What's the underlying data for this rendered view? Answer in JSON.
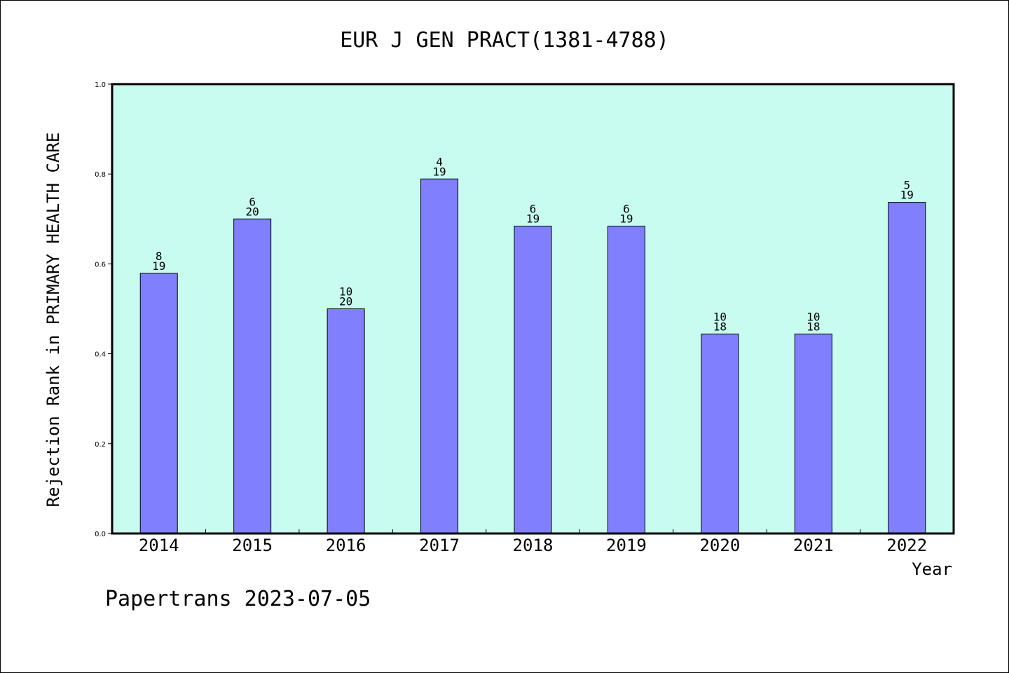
{
  "chart_data": {
    "type": "bar",
    "title": "EUR J GEN PRACT(1381-4788)",
    "xlabel": "Year",
    "ylabel": "Rejection Rank in PRIMARY HEALTH CARE",
    "ylim": [
      0,
      1.0
    ],
    "yticks": [
      "0.0",
      "0.2",
      "0.4",
      "0.6",
      "0.8",
      "1.0"
    ],
    "categories": [
      "2014",
      "2015",
      "2016",
      "2017",
      "2018",
      "2019",
      "2020",
      "2021",
      "2022"
    ],
    "values": [
      0.579,
      0.7,
      0.5,
      0.789,
      0.684,
      0.684,
      0.444,
      0.444,
      0.737
    ],
    "labels_top": [
      "8",
      "6",
      "10",
      "4",
      "6",
      "6",
      "10",
      "10",
      "5"
    ],
    "labels_bottom": [
      "19",
      "20",
      "20",
      "19",
      "19",
      "19",
      "18",
      "18",
      "19"
    ],
    "grid": false,
    "colors": {
      "plot_bg": "#c8fcf0",
      "bar": "#8080ff",
      "bar_edge": "#000000"
    }
  },
  "footer": "Papertrans 2023-07-05"
}
